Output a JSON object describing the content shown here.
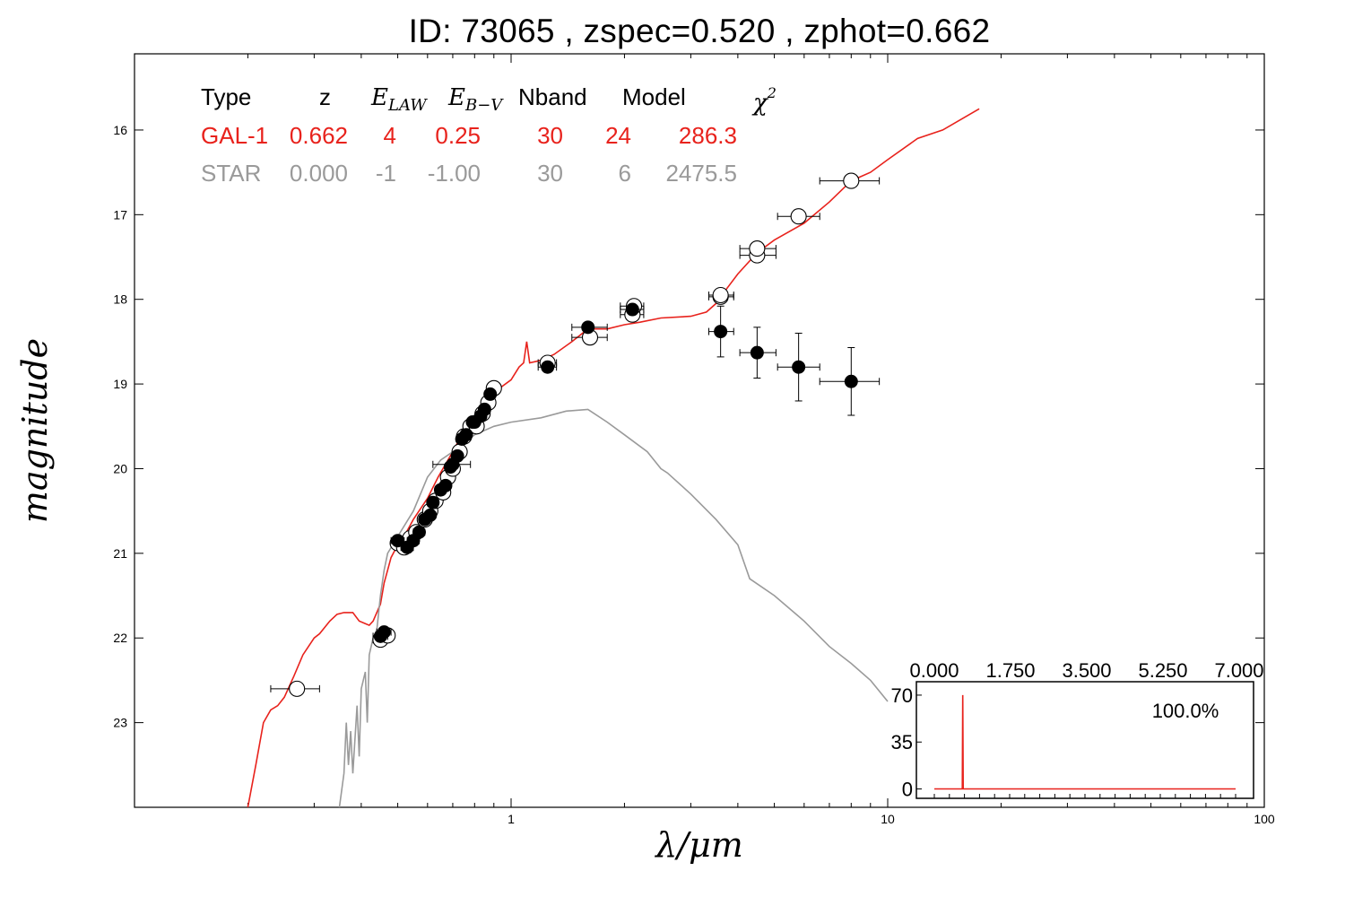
{
  "title": "ID:  73065 , zspec=0.520 , zphot=0.662",
  "chart_data": [
    {
      "type": "scatter",
      "xlabel": "λ/μm",
      "ylabel": "magnitude",
      "xscale": "log",
      "xlim": [
        0.1,
        100
      ],
      "ylim": [
        24,
        15.1
      ],
      "x_tick_labels": [
        "1",
        "10",
        "100"
      ],
      "y_tick_labels": [
        "16",
        "17",
        "18",
        "19",
        "20",
        "21",
        "22",
        "23"
      ],
      "y_ticks": [
        16,
        17,
        18,
        19,
        20,
        21,
        22,
        23
      ],
      "fit_table": {
        "headers": [
          "Type",
          "z",
          "E",
          "LAW",
          "E",
          "B−V",
          "Nband",
          "Model",
          "χ",
          "2"
        ],
        "rows": [
          {
            "type": "GAL-1",
            "z": "0.662",
            "elaw": "4",
            "ebv": "0.25",
            "nband": "30",
            "model": "24",
            "chi2": "286.3",
            "color": "#e8221c"
          },
          {
            "type": "STAR",
            "z": "0.000",
            "elaw": "-1",
            "ebv": "-1.00",
            "nband": "30",
            "model": "6",
            "chi2": "2475.5",
            "color": "#9a9a9a"
          }
        ]
      },
      "series": [
        {
          "color": "#e8221c",
          "style": "line",
          "points": [
            [
              0.2,
              24
            ],
            [
              0.21,
              23.5
            ],
            [
              0.22,
              23.0
            ],
            [
              0.23,
              22.85
            ],
            [
              0.24,
              22.8
            ],
            [
              0.25,
              22.7
            ],
            [
              0.265,
              22.45
            ],
            [
              0.28,
              22.2
            ],
            [
              0.3,
              22.0
            ],
            [
              0.31,
              21.95
            ],
            [
              0.33,
              21.8
            ],
            [
              0.345,
              21.72
            ],
            [
              0.36,
              21.7
            ],
            [
              0.38,
              21.7
            ],
            [
              0.395,
              21.8
            ],
            [
              0.41,
              21.83
            ],
            [
              0.42,
              21.85
            ],
            [
              0.43,
              21.8
            ],
            [
              0.45,
              21.6
            ],
            [
              0.46,
              21.35
            ],
            [
              0.47,
              21.2
            ],
            [
              0.48,
              21.05
            ],
            [
              0.5,
              20.9
            ],
            [
              0.52,
              20.8
            ],
            [
              0.55,
              20.6
            ],
            [
              0.6,
              20.35
            ],
            [
              0.64,
              20.1
            ],
            [
              0.7,
              19.8
            ],
            [
              0.75,
              19.55
            ],
            [
              0.8,
              19.4
            ],
            [
              0.85,
              19.25
            ],
            [
              0.9,
              19.1
            ],
            [
              1.0,
              18.95
            ],
            [
              1.05,
              18.8
            ],
            [
              1.08,
              18.75
            ],
            [
              1.1,
              18.5
            ],
            [
              1.12,
              18.75
            ],
            [
              1.2,
              18.72
            ],
            [
              1.3,
              18.65
            ],
            [
              1.45,
              18.5
            ],
            [
              1.6,
              18.35
            ],
            [
              1.8,
              18.35
            ],
            [
              2.0,
              18.3
            ],
            [
              2.2,
              18.27
            ],
            [
              2.5,
              18.22
            ],
            [
              3.0,
              18.2
            ],
            [
              3.3,
              18.15
            ],
            [
              3.5,
              18.05
            ],
            [
              3.7,
              17.9
            ],
            [
              4.0,
              17.7
            ],
            [
              4.5,
              17.45
            ],
            [
              5.0,
              17.3
            ],
            [
              6.0,
              17.1
            ],
            [
              7.0,
              16.85
            ],
            [
              8.0,
              16.6
            ],
            [
              9.0,
              16.5
            ],
            [
              10.0,
              16.35
            ],
            [
              12.0,
              16.1
            ],
            [
              14.0,
              16.0
            ],
            [
              16.0,
              15.85
            ],
            [
              17.5,
              15.75
            ]
          ]
        },
        {
          "color": "#9a9a9a",
          "style": "line",
          "points": [
            [
              0.35,
              24
            ],
            [
              0.36,
              23.6
            ],
            [
              0.365,
              23.0
            ],
            [
              0.37,
              23.5
            ],
            [
              0.375,
              23.1
            ],
            [
              0.38,
              23.6
            ],
            [
              0.39,
              22.8
            ],
            [
              0.395,
              23.4
            ],
            [
              0.4,
              22.6
            ],
            [
              0.41,
              22.4
            ],
            [
              0.415,
              23.0
            ],
            [
              0.42,
              22.2
            ],
            [
              0.43,
              22.0
            ],
            [
              0.44,
              21.9
            ],
            [
              0.45,
              21.5
            ],
            [
              0.46,
              21.2
            ],
            [
              0.47,
              21.0
            ],
            [
              0.5,
              20.8
            ],
            [
              0.55,
              20.5
            ],
            [
              0.6,
              20.1
            ],
            [
              0.65,
              19.9
            ],
            [
              0.7,
              19.8
            ],
            [
              0.8,
              19.6
            ],
            [
              0.9,
              19.5
            ],
            [
              1.0,
              19.45
            ],
            [
              1.2,
              19.4
            ],
            [
              1.4,
              19.32
            ],
            [
              1.6,
              19.3
            ],
            [
              1.8,
              19.45
            ],
            [
              2.0,
              19.6
            ],
            [
              2.3,
              19.8
            ],
            [
              2.5,
              20.0
            ],
            [
              2.6,
              20.05
            ],
            [
              3.0,
              20.3
            ],
            [
              3.5,
              20.6
            ],
            [
              4.0,
              20.9
            ],
            [
              4.3,
              21.3
            ],
            [
              5.0,
              21.5
            ],
            [
              6.0,
              21.8
            ],
            [
              7.0,
              22.1
            ],
            [
              8.0,
              22.3
            ],
            [
              9.0,
              22.5
            ],
            [
              10.0,
              22.75
            ]
          ]
        },
        {
          "name": "observed",
          "color": "#000000",
          "marker": "filled-circle",
          "points": [
            [
              0.45,
              21.98
            ],
            [
              0.46,
              21.93
            ],
            [
              0.5,
              20.85
            ],
            [
              0.53,
              20.93
            ],
            [
              0.55,
              20.85
            ],
            [
              0.57,
              20.75
            ],
            [
              0.59,
              20.6
            ],
            [
              0.61,
              20.55
            ],
            [
              0.62,
              20.4
            ],
            [
              0.65,
              20.25
            ],
            [
              0.67,
              20.2
            ],
            [
              0.69,
              19.98
            ],
            [
              0.7,
              19.95
            ],
            [
              0.72,
              19.85
            ],
            [
              0.74,
              19.65
            ],
            [
              0.76,
              19.6
            ],
            [
              0.79,
              19.45
            ],
            [
              0.8,
              19.45
            ],
            [
              0.83,
              19.38
            ],
            [
              0.85,
              19.3
            ],
            [
              0.88,
              19.12
            ],
            [
              1.25,
              18.8
            ],
            [
              1.6,
              18.33
            ],
            [
              2.1,
              18.12
            ],
            [
              3.6,
              18.38
            ],
            [
              4.5,
              18.63
            ],
            [
              5.8,
              18.8
            ],
            [
              8.0,
              18.97
            ]
          ],
          "xerr": [
            [
              0.43,
              0.47
            ],
            [
              0.44,
              0.48
            ],
            [
              0.48,
              0.52
            ],
            [
              0.51,
              0.55
            ],
            [
              0.53,
              0.57
            ],
            [
              0.55,
              0.59
            ],
            [
              0.57,
              0.61
            ],
            [
              0.59,
              0.63
            ],
            [
              0.6,
              0.64
            ],
            [
              0.63,
              0.67
            ],
            [
              0.65,
              0.69
            ],
            [
              0.67,
              0.71
            ],
            [
              0.62,
              0.78
            ],
            [
              0.7,
              0.74
            ],
            [
              0.72,
              0.76
            ],
            [
              0.74,
              0.78
            ],
            [
              0.77,
              0.81
            ],
            [
              0.78,
              0.82
            ],
            [
              0.81,
              0.85
            ],
            [
              0.83,
              0.87
            ],
            [
              0.86,
              0.9
            ],
            [
              1.18,
              1.32
            ],
            [
              1.45,
              1.8
            ],
            [
              1.95,
              2.25
            ],
            [
              3.35,
              3.9
            ],
            [
              4.05,
              5.05
            ],
            [
              5.1,
              6.6
            ],
            [
              6.6,
              9.5
            ]
          ],
          "yerr": [
            [
              21.94,
              22.02
            ],
            [
              21.89,
              21.97
            ],
            [
              20.8,
              20.9
            ],
            [
              20.88,
              20.98
            ],
            [
              20.8,
              20.9
            ],
            [
              20.7,
              20.8
            ],
            [
              20.55,
              20.65
            ],
            [
              20.5,
              20.6
            ],
            [
              20.35,
              20.45
            ],
            [
              20.2,
              20.3
            ],
            [
              20.15,
              20.25
            ],
            [
              19.93,
              20.03
            ],
            [
              19.9,
              20.0
            ],
            [
              19.8,
              19.9
            ],
            [
              19.6,
              19.7
            ],
            [
              19.55,
              19.65
            ],
            [
              19.4,
              19.5
            ],
            [
              19.4,
              19.5
            ],
            [
              19.33,
              19.43
            ],
            [
              19.25,
              19.35
            ],
            [
              19.07,
              19.17
            ],
            [
              18.75,
              18.85
            ],
            [
              18.28,
              18.38
            ],
            [
              18.07,
              18.17
            ],
            [
              18.08,
              18.68
            ],
            [
              18.33,
              18.93
            ],
            [
              18.4,
              19.2
            ],
            [
              18.57,
              19.37
            ]
          ]
        },
        {
          "name": "model",
          "color": "#000000",
          "marker": "open-circle",
          "points": [
            [
              0.27,
              22.6
            ],
            [
              0.45,
              22.02
            ],
            [
              0.47,
              21.97
            ],
            [
              0.5,
              20.88
            ],
            [
              0.52,
              20.93
            ],
            [
              0.54,
              20.82
            ],
            [
              0.56,
              20.75
            ],
            [
              0.59,
              20.6
            ],
            [
              0.61,
              20.5
            ],
            [
              0.63,
              20.38
            ],
            [
              0.66,
              20.28
            ],
            [
              0.68,
              20.1
            ],
            [
              0.7,
              20.0
            ],
            [
              0.73,
              19.8
            ],
            [
              0.75,
              19.62
            ],
            [
              0.78,
              19.5
            ],
            [
              0.81,
              19.5
            ],
            [
              0.84,
              19.35
            ],
            [
              0.87,
              19.22
            ],
            [
              0.9,
              19.05
            ],
            [
              1.25,
              18.75
            ],
            [
              1.62,
              18.45
            ],
            [
              2.1,
              18.18
            ],
            [
              2.12,
              18.08
            ],
            [
              3.6,
              17.97
            ],
            [
              3.6,
              17.95
            ],
            [
              4.5,
              17.48
            ],
            [
              4.5,
              17.4
            ],
            [
              5.8,
              17.02
            ],
            [
              8.0,
              16.6
            ]
          ],
          "xerr": [
            [
              0.23,
              0.31
            ],
            [
              0.43,
              0.47
            ],
            [
              0.45,
              0.49
            ],
            [
              0.48,
              0.52
            ],
            [
              0.5,
              0.54
            ],
            [
              0.52,
              0.56
            ],
            [
              0.54,
              0.58
            ],
            [
              0.57,
              0.61
            ],
            [
              0.59,
              0.63
            ],
            [
              0.61,
              0.65
            ],
            [
              0.64,
              0.68
            ],
            [
              0.66,
              0.7
            ],
            [
              0.68,
              0.72
            ],
            [
              0.71,
              0.75
            ],
            [
              0.73,
              0.77
            ],
            [
              0.76,
              0.8
            ],
            [
              0.79,
              0.83
            ],
            [
              0.82,
              0.86
            ],
            [
              0.85,
              0.89
            ],
            [
              0.88,
              0.92
            ],
            [
              1.18,
              1.32
            ],
            [
              1.45,
              1.8
            ],
            [
              1.95,
              2.25
            ],
            [
              1.95,
              2.25
            ],
            [
              3.35,
              3.9
            ],
            [
              3.35,
              3.9
            ],
            [
              4.05,
              5.05
            ],
            [
              4.05,
              5.05
            ],
            [
              5.1,
              6.6
            ],
            [
              6.6,
              9.5
            ]
          ]
        }
      ]
    },
    {
      "type": "line",
      "xlim": [
        0,
        7
      ],
      "ylim": [
        -7,
        80
      ],
      "x_tick_labels": [
        "0.000",
        "1.750",
        "3.500",
        "5.250",
        "7.000"
      ],
      "y_tick_labels": [
        "0",
        "35",
        "70"
      ],
      "y_ticks": [
        0,
        35,
        70
      ],
      "annotation": "100.0%",
      "color": "#e8221c",
      "points": [
        [
          0.0,
          0
        ],
        [
          0.65,
          0
        ],
        [
          0.66,
          70
        ],
        [
          0.67,
          0
        ],
        [
          7.0,
          0
        ]
      ]
    }
  ]
}
